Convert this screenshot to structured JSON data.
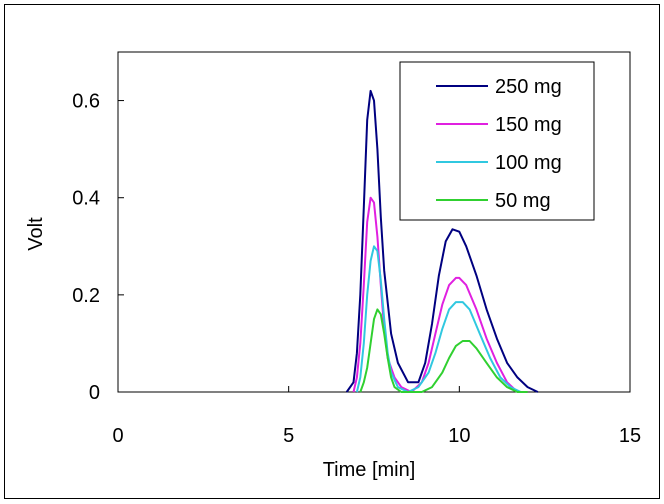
{
  "chart_data": {
    "type": "line",
    "title": "",
    "xlabel": "Time [min]",
    "ylabel": "Volt",
    "xlim": [
      0,
      15
    ],
    "ylim": [
      0,
      0.7
    ],
    "xticks": [
      0,
      5,
      10,
      15
    ],
    "xtick_labels": [
      "0",
      "5",
      "10",
      "15"
    ],
    "yticks": [
      0,
      0.2,
      0.4,
      0.6
    ],
    "ytick_labels": [
      "0",
      "0.2",
      "0.4",
      "0.6"
    ],
    "grid": false,
    "legend_position": "top-right",
    "series": [
      {
        "name": "250 mg",
        "color": "#000080",
        "x": [
          6.7,
          6.9,
          7.0,
          7.1,
          7.2,
          7.3,
          7.4,
          7.5,
          7.6,
          7.7,
          7.8,
          8.0,
          8.2,
          8.5,
          8.8,
          9.0,
          9.2,
          9.4,
          9.6,
          9.8,
          10.0,
          10.2,
          10.5,
          10.8,
          11.1,
          11.4,
          11.7,
          12.0,
          12.3
        ],
        "y": [
          0.0,
          0.02,
          0.08,
          0.2,
          0.38,
          0.56,
          0.62,
          0.6,
          0.5,
          0.36,
          0.25,
          0.12,
          0.06,
          0.02,
          0.02,
          0.06,
          0.14,
          0.24,
          0.31,
          0.335,
          0.33,
          0.3,
          0.24,
          0.17,
          0.11,
          0.06,
          0.03,
          0.01,
          0.0
        ]
      },
      {
        "name": "150 mg",
        "color": "#e020e0",
        "x": [
          6.9,
          7.0,
          7.1,
          7.2,
          7.3,
          7.4,
          7.5,
          7.6,
          7.7,
          7.8,
          7.9,
          8.1,
          8.3,
          8.6,
          8.9,
          9.1,
          9.3,
          9.5,
          9.7,
          9.9,
          10.0,
          10.2,
          10.5,
          10.8,
          11.1,
          11.4,
          11.7
        ],
        "y": [
          0.0,
          0.03,
          0.1,
          0.22,
          0.35,
          0.4,
          0.39,
          0.32,
          0.22,
          0.13,
          0.07,
          0.03,
          0.01,
          0.0,
          0.02,
          0.06,
          0.12,
          0.18,
          0.22,
          0.235,
          0.235,
          0.22,
          0.17,
          0.11,
          0.06,
          0.02,
          0.0
        ]
      },
      {
        "name": "100 mg",
        "color": "#30c8e0",
        "x": [
          7.0,
          7.1,
          7.2,
          7.3,
          7.4,
          7.5,
          7.6,
          7.7,
          7.8,
          7.9,
          8.0,
          8.2,
          8.5,
          8.8,
          9.1,
          9.3,
          9.5,
          9.7,
          9.9,
          10.1,
          10.3,
          10.6,
          10.9,
          11.2,
          11.5,
          11.8
        ],
        "y": [
          0.0,
          0.03,
          0.1,
          0.2,
          0.27,
          0.3,
          0.29,
          0.23,
          0.15,
          0.08,
          0.04,
          0.01,
          0.0,
          0.01,
          0.04,
          0.08,
          0.13,
          0.17,
          0.185,
          0.185,
          0.17,
          0.12,
          0.07,
          0.03,
          0.01,
          0.0
        ]
      },
      {
        "name": "50 mg",
        "color": "#30d030",
        "x": [
          7.1,
          7.2,
          7.3,
          7.4,
          7.5,
          7.6,
          7.7,
          7.8,
          7.9,
          8.0,
          8.1,
          8.3,
          8.6,
          8.9,
          9.2,
          9.5,
          9.7,
          9.9,
          10.1,
          10.3,
          10.5,
          10.8,
          11.1,
          11.4,
          11.7,
          12.0
        ],
        "y": [
          0.0,
          0.02,
          0.05,
          0.1,
          0.15,
          0.17,
          0.16,
          0.12,
          0.07,
          0.03,
          0.01,
          0.0,
          0.0,
          0.0,
          0.01,
          0.04,
          0.07,
          0.095,
          0.105,
          0.105,
          0.09,
          0.06,
          0.03,
          0.01,
          0.0,
          0.0
        ]
      }
    ]
  }
}
